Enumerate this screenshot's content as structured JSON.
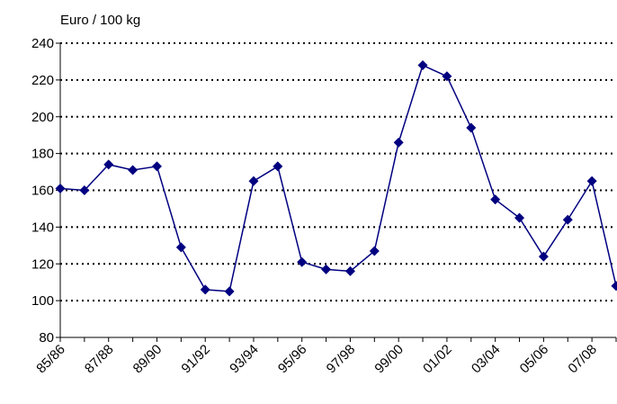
{
  "chart_data": {
    "type": "line",
    "y_label": "Euro / 100 kg",
    "categories": [
      "85/86",
      null,
      "87/88",
      null,
      "89/90",
      null,
      "91/92",
      null,
      "93/94",
      null,
      "95/96",
      null,
      "97/98",
      null,
      "99/00",
      null,
      "01/02",
      null,
      "03/04",
      null,
      "05/06",
      null,
      "07/08",
      null
    ],
    "series": [
      {
        "name": "Euro / 100 kg",
        "color": "#000080",
        "values": [
          161,
          160,
          174,
          171,
          173,
          129,
          106,
          105,
          165,
          173,
          121,
          117,
          116,
          127,
          186,
          228,
          222,
          194,
          155,
          145,
          124,
          144,
          165,
          108
        ]
      }
    ],
    "ylim": [
      80,
      240
    ],
    "yticks": [
      80,
      100,
      120,
      140,
      160,
      180,
      200,
      220,
      240
    ],
    "grid": true
  }
}
